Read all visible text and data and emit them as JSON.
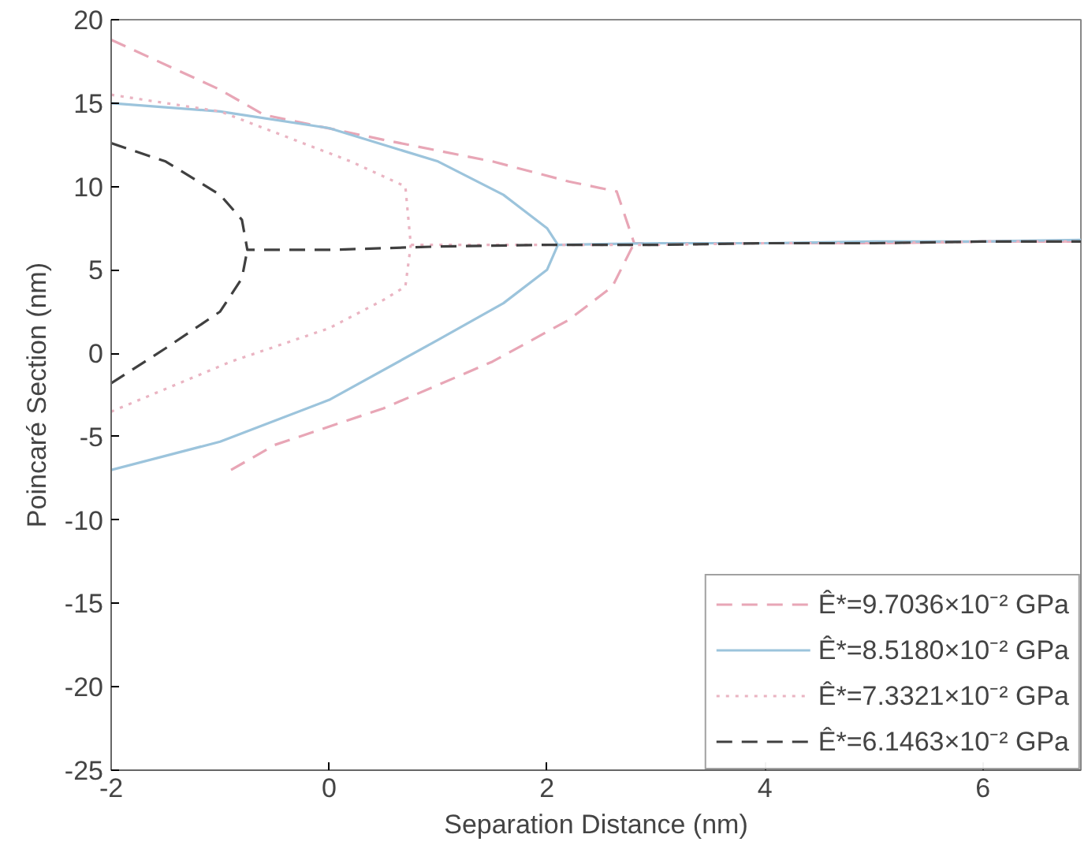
{
  "chart_data": {
    "type": "line",
    "xlabel": "Separation Distance (nm)",
    "ylabel": "Poincaré Section (nm)",
    "xlim": [
      -2,
      6.9
    ],
    "ylim": [
      -25,
      20
    ],
    "xticks": [
      -2,
      0,
      2,
      4,
      6
    ],
    "yticks": [
      -25,
      -20,
      -15,
      -10,
      -5,
      0,
      5,
      10,
      15,
      20
    ],
    "grid": false,
    "legend": "bottom right",
    "series": [
      {
        "name": "Ê*=9.7036×10⁻² GPa",
        "color": "#e8a6b6",
        "line_style": "dashed",
        "x": [
          -2,
          -1,
          -0.6,
          0.5,
          1.5,
          2.2,
          2.64,
          2.8,
          4,
          5,
          6,
          6.9,
          null,
          -0.9,
          -0.5,
          0.5,
          1.5,
          2.2,
          2.6,
          2.8
        ],
        "values": [
          18.8,
          15.8,
          14.3,
          12.8,
          11.5,
          10.3,
          9.7,
          6.6,
          6.6,
          6.6,
          6.7,
          6.7,
          null,
          -7,
          -5.5,
          -3.3,
          -0.5,
          2,
          4,
          6.6
        ]
      },
      {
        "name": "Ê*=8.5180×10⁻² GPa",
        "color": "#9cc4dc",
        "line_style": "solid",
        "x": [
          -2,
          -1,
          0,
          1,
          1.6,
          2.0,
          2.1,
          3,
          4,
          5,
          6,
          6.9,
          null,
          -2,
          -1,
          0,
          1,
          1.6,
          2.0,
          2.1
        ],
        "values": [
          15,
          14.5,
          13.5,
          11.5,
          9.5,
          7.5,
          6.5,
          6.6,
          6.6,
          6.7,
          6.7,
          6.8,
          null,
          -7,
          -5.3,
          -2.8,
          0.8,
          3,
          5,
          6.5
        ]
      },
      {
        "name": "Ê*=7.3321×10⁻² GPa",
        "color": "#eab4c2",
        "line_style": "dotted",
        "x": [
          -2,
          -1,
          -0.2,
          0.2,
          0.7,
          0.75,
          2,
          3,
          4,
          5,
          6,
          6.9,
          null,
          -2,
          -0.9,
          0,
          0.5,
          0.7,
          0.75
        ],
        "values": [
          15.5,
          14.5,
          12.5,
          11.5,
          10,
          6.5,
          6.5,
          6.5,
          6.6,
          6.6,
          6.7,
          6.7,
          null,
          -3.5,
          -0.5,
          1.5,
          3.2,
          4,
          6.5
        ]
      },
      {
        "name": "Ê*=6.1463×10⁻² GPa",
        "color": "#404040",
        "line_style": "dashed",
        "x": [
          -2,
          -1.5,
          -1,
          -0.8,
          -0.75,
          0,
          1,
          2,
          3,
          4,
          5,
          6,
          6.9,
          null,
          -2,
          -1.5,
          -1,
          -0.8,
          -0.75
        ],
        "values": [
          12.6,
          11.5,
          9.5,
          8,
          6.2,
          6.2,
          6.4,
          6.5,
          6.5,
          6.6,
          6.6,
          6.7,
          6.7,
          null,
          -1.8,
          0.3,
          2.5,
          4.5,
          6.2
        ]
      }
    ]
  }
}
